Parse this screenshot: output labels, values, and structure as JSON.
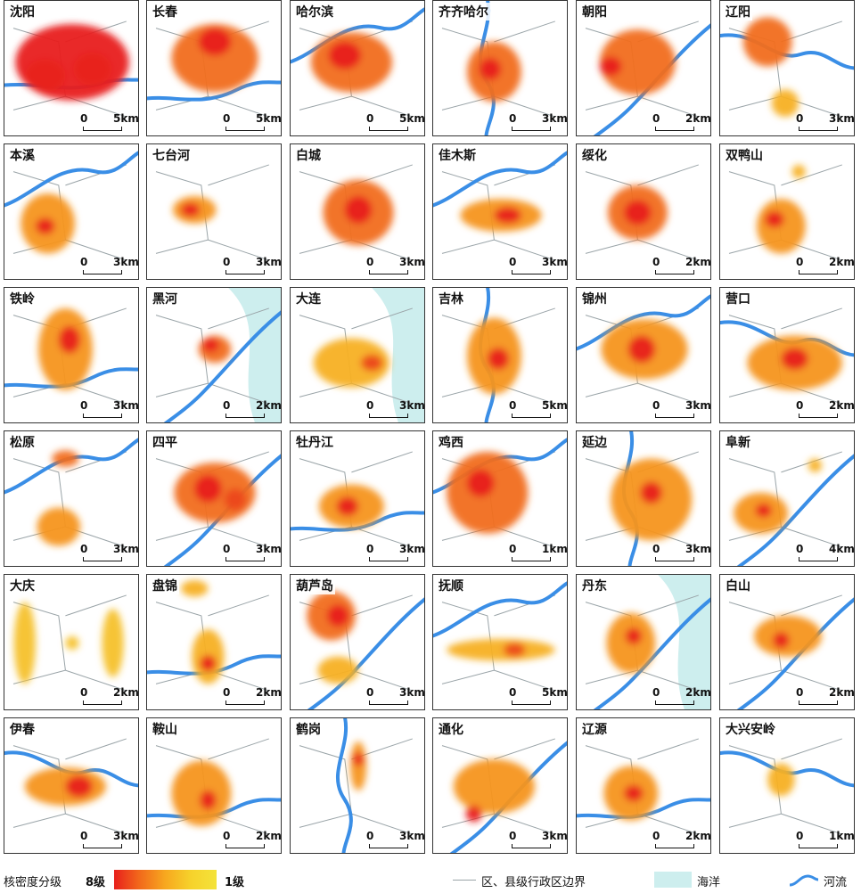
{
  "map": {
    "colors": {
      "high": "#e8201c",
      "mid": "#f7a81f",
      "low": "#f4e33a",
      "river": "#3a8ee6",
      "boundary": "#9aa4a8",
      "sea": "#cdeeee"
    },
    "panels": [
      {
        "name": "沈阳",
        "scale": "5km",
        "sea": false,
        "river": "m",
        "blobs": [
          [
            0.5,
            0.45,
            0.42,
            0.28,
            8
          ],
          [
            0.3,
            0.55,
            0.15,
            0.12,
            7
          ],
          [
            0.65,
            0.5,
            0.14,
            0.12,
            6
          ]
        ]
      },
      {
        "name": "长春",
        "scale": "5km",
        "sea": false,
        "river": "s",
        "blobs": [
          [
            0.5,
            0.42,
            0.32,
            0.25,
            6
          ],
          [
            0.5,
            0.3,
            0.12,
            0.1,
            8
          ]
        ]
      },
      {
        "name": "哈尔滨",
        "scale": "5km",
        "sea": false,
        "river": "w",
        "blobs": [
          [
            0.45,
            0.45,
            0.3,
            0.22,
            6
          ],
          [
            0.4,
            0.4,
            0.12,
            0.1,
            8
          ]
        ]
      },
      {
        "name": "齐齐哈尔",
        "scale": "3km",
        "sea": false,
        "river": "v",
        "blobs": [
          [
            0.45,
            0.52,
            0.2,
            0.22,
            6
          ],
          [
            0.42,
            0.5,
            0.08,
            0.08,
            8
          ]
        ]
      },
      {
        "name": "朝阳",
        "scale": "2km",
        "sea": false,
        "river": "d",
        "blobs": [
          [
            0.45,
            0.45,
            0.28,
            0.24,
            6
          ],
          [
            0.25,
            0.48,
            0.08,
            0.07,
            8
          ]
        ]
      },
      {
        "name": "辽阳",
        "scale": "3km",
        "sea": false,
        "river": "c",
        "blobs": [
          [
            0.35,
            0.3,
            0.18,
            0.18,
            6
          ],
          [
            0.48,
            0.75,
            0.1,
            0.1,
            4
          ]
        ]
      },
      {
        "name": "本溪",
        "scale": "3km",
        "sea": false,
        "river": "w",
        "blobs": [
          [
            0.32,
            0.58,
            0.2,
            0.22,
            5
          ],
          [
            0.3,
            0.6,
            0.07,
            0.06,
            8
          ]
        ]
      },
      {
        "name": "七台河",
        "scale": "3km",
        "sea": false,
        "river": "",
        "blobs": [
          [
            0.35,
            0.48,
            0.16,
            0.1,
            5
          ],
          [
            0.32,
            0.48,
            0.07,
            0.05,
            8
          ]
        ]
      },
      {
        "name": "白城",
        "scale": "3km",
        "sea": false,
        "river": "",
        "blobs": [
          [
            0.5,
            0.5,
            0.26,
            0.24,
            6
          ],
          [
            0.5,
            0.48,
            0.1,
            0.1,
            8
          ]
        ]
      },
      {
        "name": "佳木斯",
        "scale": "3km",
        "sea": false,
        "river": "w",
        "blobs": [
          [
            0.5,
            0.52,
            0.3,
            0.12,
            5
          ],
          [
            0.55,
            0.52,
            0.1,
            0.06,
            8
          ]
        ]
      },
      {
        "name": "绥化",
        "scale": "2km",
        "sea": false,
        "river": "",
        "blobs": [
          [
            0.45,
            0.5,
            0.22,
            0.2,
            6
          ],
          [
            0.45,
            0.5,
            0.1,
            0.09,
            8
          ]
        ]
      },
      {
        "name": "双鸭山",
        "scale": "2km",
        "sea": false,
        "river": "",
        "blobs": [
          [
            0.45,
            0.6,
            0.18,
            0.2,
            5
          ],
          [
            0.4,
            0.55,
            0.07,
            0.06,
            8
          ],
          [
            0.58,
            0.2,
            0.05,
            0.05,
            4
          ]
        ]
      },
      {
        "name": "铁岭",
        "scale": "3km",
        "sea": false,
        "river": "s",
        "blobs": [
          [
            0.45,
            0.45,
            0.2,
            0.3,
            5
          ],
          [
            0.48,
            0.38,
            0.08,
            0.1,
            8
          ]
        ]
      },
      {
        "name": "黑河",
        "scale": "2km",
        "sea": true,
        "river": "d",
        "blobs": [
          [
            0.5,
            0.45,
            0.12,
            0.1,
            6
          ],
          [
            0.47,
            0.42,
            0.06,
            0.05,
            8
          ]
        ]
      },
      {
        "name": "大连",
        "scale": "3km",
        "sea": true,
        "river": "",
        "blobs": [
          [
            0.45,
            0.55,
            0.28,
            0.18,
            4
          ],
          [
            0.6,
            0.55,
            0.08,
            0.06,
            7
          ]
        ]
      },
      {
        "name": "吉林",
        "scale": "5km",
        "sea": false,
        "river": "v",
        "blobs": [
          [
            0.45,
            0.5,
            0.2,
            0.28,
            5
          ],
          [
            0.48,
            0.52,
            0.08,
            0.08,
            8
          ]
        ]
      },
      {
        "name": "锦州",
        "scale": "3km",
        "sea": false,
        "river": "w",
        "blobs": [
          [
            0.5,
            0.45,
            0.32,
            0.22,
            5
          ],
          [
            0.48,
            0.45,
            0.1,
            0.1,
            8
          ]
        ]
      },
      {
        "name": "营口",
        "scale": "2km",
        "sea": false,
        "river": "c",
        "blobs": [
          [
            0.55,
            0.55,
            0.35,
            0.2,
            5
          ],
          [
            0.55,
            0.52,
            0.1,
            0.08,
            8
          ]
        ]
      },
      {
        "name": "松原",
        "scale": "3km",
        "sea": false,
        "river": "w",
        "blobs": [
          [
            0.4,
            0.7,
            0.16,
            0.14,
            5
          ],
          [
            0.45,
            0.2,
            0.1,
            0.06,
            6
          ]
        ]
      },
      {
        "name": "四平",
        "scale": "3km",
        "sea": false,
        "river": "d",
        "blobs": [
          [
            0.5,
            0.45,
            0.3,
            0.22,
            6
          ],
          [
            0.45,
            0.42,
            0.1,
            0.1,
            8
          ],
          [
            0.65,
            0.5,
            0.08,
            0.08,
            7
          ]
        ]
      },
      {
        "name": "牡丹江",
        "scale": "3km",
        "sea": false,
        "river": "s",
        "blobs": [
          [
            0.45,
            0.55,
            0.24,
            0.16,
            5
          ],
          [
            0.42,
            0.55,
            0.08,
            0.07,
            8
          ]
        ]
      },
      {
        "name": "鸡西",
        "scale": "1km",
        "sea": false,
        "river": "w",
        "blobs": [
          [
            0.4,
            0.45,
            0.3,
            0.3,
            6
          ],
          [
            0.35,
            0.38,
            0.1,
            0.1,
            8
          ]
        ]
      },
      {
        "name": "延边",
        "scale": "3km",
        "sea": false,
        "river": "v",
        "blobs": [
          [
            0.55,
            0.5,
            0.3,
            0.3,
            5
          ],
          [
            0.55,
            0.45,
            0.08,
            0.08,
            8
          ]
        ]
      },
      {
        "name": "阜新",
        "scale": "4km",
        "sea": false,
        "river": "d",
        "blobs": [
          [
            0.3,
            0.6,
            0.2,
            0.15,
            5
          ],
          [
            0.32,
            0.58,
            0.06,
            0.05,
            8
          ],
          [
            0.7,
            0.25,
            0.05,
            0.05,
            4
          ]
        ]
      },
      {
        "name": "大庆",
        "scale": "2km",
        "sea": false,
        "river": "",
        "blobs": [
          [
            0.15,
            0.5,
            0.08,
            0.3,
            3
          ],
          [
            0.8,
            0.5,
            0.08,
            0.25,
            3
          ],
          [
            0.5,
            0.5,
            0.05,
            0.05,
            3
          ]
        ]
      },
      {
        "name": "盘锦",
        "scale": "2km",
        "sea": false,
        "river": "s",
        "blobs": [
          [
            0.45,
            0.6,
            0.12,
            0.2,
            4
          ],
          [
            0.45,
            0.65,
            0.06,
            0.06,
            8
          ],
          [
            0.35,
            0.1,
            0.1,
            0.06,
            4
          ]
        ]
      },
      {
        "name": "葫芦岛",
        "scale": "3km",
        "sea": false,
        "river": "d",
        "blobs": [
          [
            0.3,
            0.3,
            0.18,
            0.18,
            6
          ],
          [
            0.35,
            0.3,
            0.08,
            0.08,
            8
          ],
          [
            0.35,
            0.7,
            0.15,
            0.1,
            4
          ]
        ]
      },
      {
        "name": "抚顺",
        "scale": "5km",
        "sea": false,
        "river": "w",
        "blobs": [
          [
            0.5,
            0.55,
            0.4,
            0.08,
            4
          ],
          [
            0.6,
            0.55,
            0.08,
            0.05,
            7
          ]
        ]
      },
      {
        "name": "丹东",
        "scale": "2km",
        "sea": true,
        "river": "d",
        "blobs": [
          [
            0.4,
            0.5,
            0.18,
            0.22,
            5
          ],
          [
            0.42,
            0.45,
            0.06,
            0.06,
            8
          ]
        ]
      },
      {
        "name": "白山",
        "scale": "2km",
        "sea": false,
        "river": "d",
        "blobs": [
          [
            0.5,
            0.45,
            0.25,
            0.15,
            5
          ],
          [
            0.45,
            0.48,
            0.06,
            0.06,
            8
          ]
        ]
      },
      {
        "name": "伊春",
        "scale": "3km",
        "sea": false,
        "river": "c",
        "blobs": [
          [
            0.45,
            0.5,
            0.3,
            0.14,
            5
          ],
          [
            0.55,
            0.5,
            0.1,
            0.08,
            8
          ]
        ]
      },
      {
        "name": "鞍山",
        "scale": "2km",
        "sea": false,
        "river": "s",
        "blobs": [
          [
            0.4,
            0.55,
            0.22,
            0.24,
            5
          ],
          [
            0.45,
            0.6,
            0.06,
            0.07,
            8
          ]
        ]
      },
      {
        "name": "鹤岗",
        "scale": "3km",
        "sea": false,
        "river": "v",
        "blobs": [
          [
            0.5,
            0.35,
            0.06,
            0.18,
            5
          ],
          [
            0.5,
            0.3,
            0.04,
            0.05,
            8
          ]
        ]
      },
      {
        "name": "通化",
        "scale": "3km",
        "sea": false,
        "river": "d",
        "blobs": [
          [
            0.45,
            0.5,
            0.3,
            0.2,
            5
          ],
          [
            0.3,
            0.7,
            0.06,
            0.06,
            8
          ]
        ]
      },
      {
        "name": "辽源",
        "scale": "2km",
        "sea": false,
        "river": "s",
        "blobs": [
          [
            0.4,
            0.55,
            0.2,
            0.2,
            5
          ],
          [
            0.42,
            0.55,
            0.07,
            0.06,
            8
          ]
        ]
      },
      {
        "name": "大兴安岭",
        "scale": "1km",
        "sea": false,
        "river": "c",
        "blobs": [
          [
            0.45,
            0.45,
            0.1,
            0.12,
            4
          ]
        ]
      }
    ]
  },
  "legend": {
    "density_title": "核密度分级",
    "high_label": "8级",
    "low_label": "1级",
    "boundary_label": "区、县级行政区边界",
    "sea_label": "海洋",
    "river_label": "河流"
  }
}
